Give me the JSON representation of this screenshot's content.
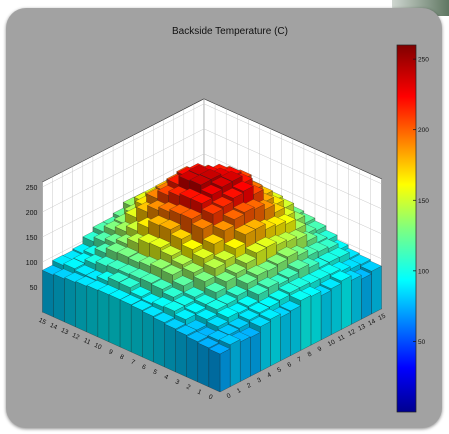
{
  "chart_data": {
    "type": "bar3d",
    "title": "Backside Temperature (C)",
    "x_ticks": [
      "15",
      "14",
      "13",
      "12",
      "11",
      "10",
      "9",
      "8",
      "7",
      "6",
      "5",
      "4",
      "3",
      "2",
      "1",
      "0"
    ],
    "y_ticks": [
      "15",
      "14",
      "13",
      "12",
      "11",
      "10",
      "9",
      "8",
      "7",
      "6",
      "5",
      "4",
      "3",
      "2",
      "1",
      "0"
    ],
    "z_ticks": [
      "50",
      "100",
      "150",
      "200",
      "250"
    ],
    "zlim": [
      0,
      260
    ],
    "colorbar": {
      "ticks": [
        "50",
        "100",
        "150",
        "200",
        "250"
      ],
      "range": [
        0,
        260
      ],
      "colormap": "jet"
    },
    "grid": true,
    "surface_model": {
      "shape": "dome",
      "center": [
        9.0,
        9.0
      ],
      "peak": 240,
      "base": 60,
      "falloff": 0.55
    }
  },
  "colors": {
    "panel": "#a2a2a2",
    "text": "#111111"
  }
}
